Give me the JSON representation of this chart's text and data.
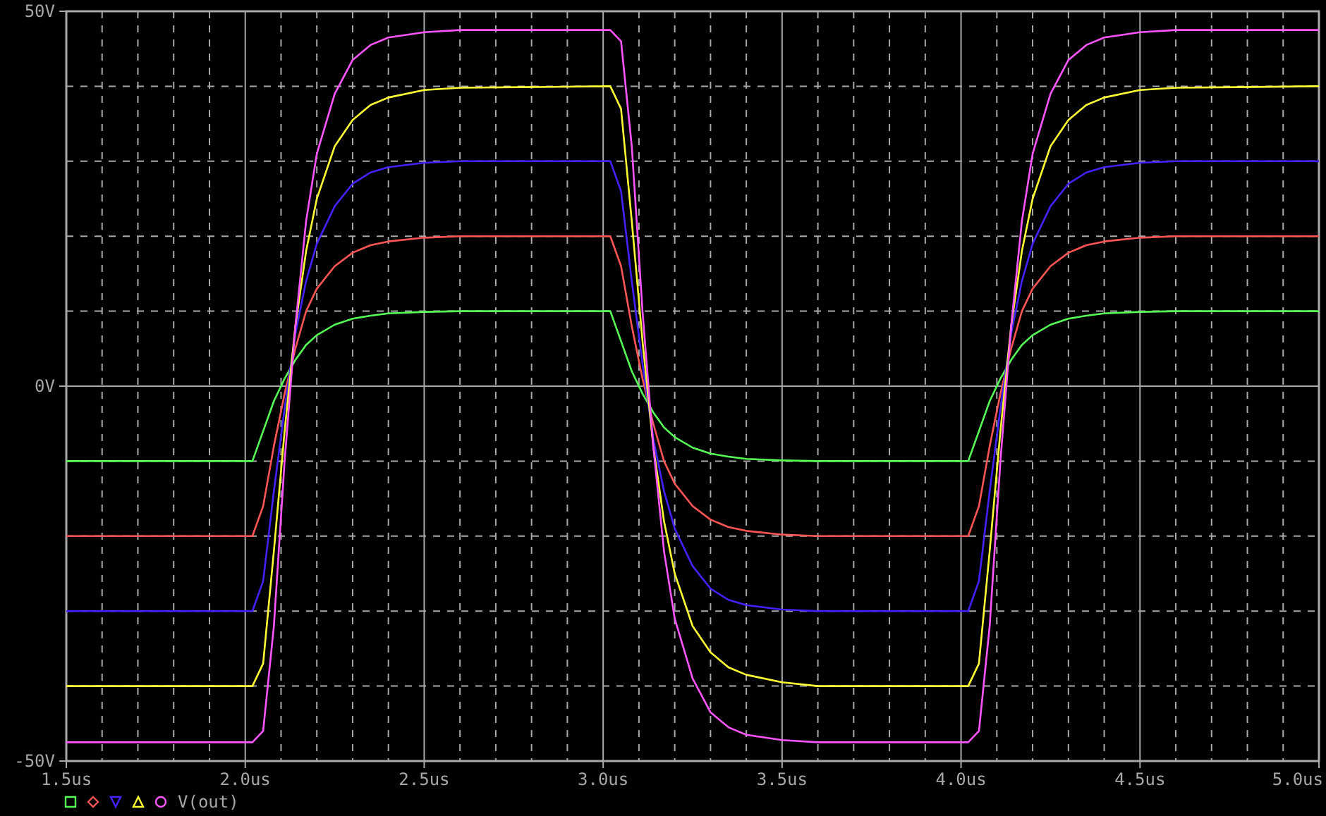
{
  "chart_data": {
    "type": "line",
    "x": [
      1.5,
      2.02,
      2.05,
      2.08,
      2.11,
      2.14,
      2.17,
      2.2,
      2.25,
      2.3,
      2.35,
      2.4,
      2.5,
      2.6,
      3.02,
      3.05,
      3.08,
      3.11,
      3.14,
      3.17,
      3.2,
      3.25,
      3.3,
      3.35,
      3.4,
      3.5,
      3.6,
      4.02,
      4.05,
      4.08,
      4.11,
      4.14,
      4.17,
      4.2,
      4.25,
      4.3,
      4.35,
      4.4,
      4.5,
      4.6,
      5.0
    ],
    "series": [
      {
        "color": "#55ff55",
        "values": [
          -10,
          -10,
          -6,
          -2,
          1,
          3.5,
          5.5,
          6.8,
          8.2,
          9,
          9.4,
          9.7,
          9.9,
          10,
          10,
          6,
          2,
          -1,
          -3.5,
          -5.5,
          -6.8,
          -8.2,
          -9,
          -9.4,
          -9.7,
          -9.9,
          -10,
          -10,
          -6,
          -2,
          1,
          3.5,
          5.5,
          6.8,
          8.2,
          9,
          9.4,
          9.7,
          9.9,
          10,
          10
        ]
      },
      {
        "color": "#ff5555",
        "values": [
          -20,
          -20,
          -16,
          -8,
          -1,
          5,
          10,
          13,
          16,
          17.8,
          18.8,
          19.3,
          19.8,
          20,
          20,
          16,
          8,
          1,
          -5,
          -10,
          -13,
          -16,
          -17.8,
          -18.8,
          -19.3,
          -19.8,
          -20,
          -20,
          -16,
          -8,
          -1,
          5,
          10,
          13,
          16,
          17.8,
          18.8,
          19.3,
          19.8,
          20,
          20
        ]
      },
      {
        "color": "#4422ff",
        "values": [
          -30,
          -30,
          -26,
          -14,
          -3,
          7,
          14,
          19,
          24,
          27,
          28.5,
          29.2,
          29.8,
          30,
          30,
          26,
          14,
          3,
          -7,
          -14,
          -19,
          -24,
          -27,
          -28.5,
          -29.2,
          -29.8,
          -30,
          -30,
          -26,
          -14,
          -3,
          7,
          14,
          19,
          24,
          27,
          28.5,
          29.2,
          29.8,
          30,
          30
        ]
      },
      {
        "color": "#ffff33",
        "values": [
          -40,
          -40,
          -37,
          -22,
          -6,
          8,
          18,
          25,
          32,
          35.5,
          37.5,
          38.5,
          39.5,
          39.8,
          40,
          37,
          22,
          6,
          -8,
          -18,
          -25,
          -32,
          -35.5,
          -37.5,
          -38.5,
          -39.5,
          -40,
          -40,
          -37,
          -22,
          -6,
          8,
          18,
          25,
          32,
          35.5,
          37.5,
          38.5,
          39.5,
          39.8,
          40
        ]
      },
      {
        "name": "V(out)",
        "color": "#ff55ff",
        "values": [
          -47.5,
          -47.5,
          -46,
          -32,
          -10,
          8,
          22,
          31,
          39,
          43.5,
          45.5,
          46.5,
          47.2,
          47.5,
          47.5,
          46,
          32,
          10,
          -8,
          -22,
          -31,
          -39,
          -43.5,
          -45.5,
          -46.5,
          -47.2,
          -47.5,
          -47.5,
          -46,
          -32,
          -10,
          8,
          22,
          31,
          39,
          43.5,
          45.5,
          46.5,
          47.2,
          47.5,
          47.5
        ]
      }
    ],
    "xlim": [
      1.5,
      5.0
    ],
    "xticks": [
      {
        "value": 1.5,
        "label": "1.5us"
      },
      {
        "value": 1.6,
        "label": null
      },
      {
        "value": 1.7,
        "label": null
      },
      {
        "value": 1.8,
        "label": null
      },
      {
        "value": 1.9,
        "label": null
      },
      {
        "value": 2.0,
        "label": "2.0us"
      },
      {
        "value": 2.1,
        "label": null
      },
      {
        "value": 2.2,
        "label": null
      },
      {
        "value": 2.3,
        "label": null
      },
      {
        "value": 2.4,
        "label": null
      },
      {
        "value": 2.5,
        "label": "2.5us"
      },
      {
        "value": 2.6,
        "label": null
      },
      {
        "value": 2.7,
        "label": null
      },
      {
        "value": 2.8,
        "label": null
      },
      {
        "value": 2.9,
        "label": null
      },
      {
        "value": 3.0,
        "label": "3.0us"
      },
      {
        "value": 3.1,
        "label": null
      },
      {
        "value": 3.2,
        "label": null
      },
      {
        "value": 3.3,
        "label": null
      },
      {
        "value": 3.4,
        "label": null
      },
      {
        "value": 3.5,
        "label": "3.5us"
      },
      {
        "value": 3.6,
        "label": null
      },
      {
        "value": 3.7,
        "label": null
      },
      {
        "value": 3.8,
        "label": null
      },
      {
        "value": 3.9,
        "label": null
      },
      {
        "value": 4.0,
        "label": "4.0us"
      },
      {
        "value": 4.1,
        "label": null
      },
      {
        "value": 4.2,
        "label": null
      },
      {
        "value": 4.3,
        "label": null
      },
      {
        "value": 4.4,
        "label": null
      },
      {
        "value": 4.5,
        "label": "4.5us"
      },
      {
        "value": 4.6,
        "label": null
      },
      {
        "value": 4.7,
        "label": null
      },
      {
        "value": 4.8,
        "label": null
      },
      {
        "value": 4.9,
        "label": null
      },
      {
        "value": 5.0,
        "label": "5.0us"
      }
    ],
    "ylim": [
      -50,
      50
    ],
    "yticks": [
      {
        "value": -50,
        "label": "-50V"
      },
      {
        "value": -40,
        "label": null
      },
      {
        "value": -30,
        "label": null
      },
      {
        "value": -20,
        "label": null
      },
      {
        "value": -10,
        "label": null
      },
      {
        "value": 0,
        "label": "0V"
      },
      {
        "value": 10,
        "label": null
      },
      {
        "value": 20,
        "label": null
      },
      {
        "value": 30,
        "label": null
      },
      {
        "value": 40,
        "label": null
      },
      {
        "value": 50,
        "label": "50V"
      }
    ],
    "grid": true,
    "legend": "bottom left"
  }
}
